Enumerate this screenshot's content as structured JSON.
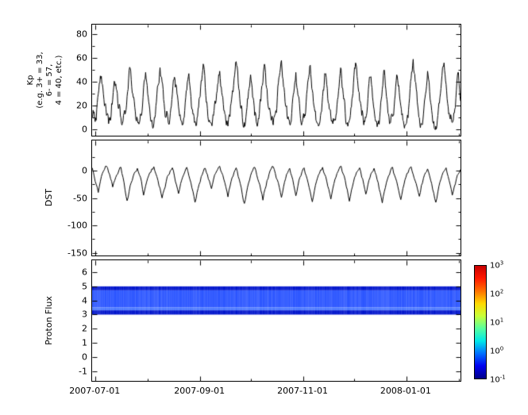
{
  "figure": {
    "background": "#ffffff",
    "axis_color": "#000000"
  },
  "x_axis": {
    "domain_days": 218,
    "major_days": [
      2,
      64,
      125,
      186
    ],
    "minor_days": [
      33,
      94,
      155,
      217
    ],
    "labels": [
      "2007-07-01",
      "2007-09-01",
      "2007-11-01",
      "2008-01-01"
    ]
  },
  "chart_data": [
    {
      "type": "line",
      "title": "",
      "xlabel": "",
      "ylabel": "Kp\n(e.g. 3+ = 33,\n6- = 57,\n4 = 40, etc.)",
      "ylim": [
        -5,
        88
      ],
      "yticks": [
        0,
        20,
        40,
        60,
        80
      ],
      "yticks_minor": [
        10,
        30,
        50,
        70
      ],
      "line_color": "#000000",
      "jitter_levels": 2,
      "jitter_amplitude": 6,
      "clamp": [
        0,
        85
      ],
      "values": [
        10,
        15,
        8,
        30,
        45,
        38,
        20,
        12,
        5,
        8,
        25,
        40,
        33,
        18,
        10,
        7,
        13,
        28,
        50,
        42,
        27,
        15,
        9,
        6,
        12,
        35,
        48,
        30,
        17,
        8,
        5,
        20,
        37,
        52,
        40,
        22,
        11,
        6,
        14,
        30,
        44,
        36,
        19,
        9,
        4,
        16,
        33,
        47,
        28,
        13,
        7,
        10,
        26,
        41,
        55,
        35,
        18,
        8,
        5,
        12,
        22,
        38,
        49,
        31,
        16,
        7,
        3,
        11,
        29,
        43,
        57,
        39,
        21,
        10,
        6,
        15,
        32,
        46,
        27,
        12,
        5,
        9,
        24,
        40,
        53,
        34,
        17,
        8,
        4,
        13,
        27,
        45,
        58,
        36,
        20,
        9,
        5,
        14,
        31,
        48,
        29,
        15,
        6,
        10,
        23,
        42,
        54,
        33,
        18,
        7,
        3,
        12,
        28,
        47,
        38,
        22,
        11,
        5,
        9,
        21,
        36,
        51,
        30,
        14,
        6,
        8,
        19,
        39,
        56,
        41,
        24,
        12,
        4,
        10,
        26,
        44,
        35,
        17,
        7,
        5,
        16,
        34,
        50,
        28,
        13,
        6,
        11,
        25,
        46,
        37,
        20,
        8,
        4,
        9,
        22,
        43,
        59,
        40,
        23,
        10,
        5,
        13,
        30,
        49,
        32,
        16,
        7,
        3,
        12,
        27,
        45,
        56,
        38,
        19,
        9,
        6,
        14,
        33,
        48,
        24
      ]
    },
    {
      "type": "line",
      "title": "",
      "xlabel": "",
      "ylabel": "DST",
      "ylim": [
        -155,
        55
      ],
      "yticks": [
        0,
        -50,
        -100,
        -150
      ],
      "yticks_minor": [
        25,
        -25,
        -75,
        -125
      ],
      "line_color": "#000000",
      "jitter_levels": 1,
      "jitter_amplitude": 3,
      "clamp": [
        -70,
        25
      ],
      "values": [
        5,
        -10,
        -25,
        -40,
        -20,
        -5,
        2,
        8,
        -3,
        -15,
        -30,
        -18,
        -8,
        0,
        6,
        -12,
        -35,
        -55,
        -38,
        -22,
        -10,
        -2,
        4,
        -8,
        -20,
        -45,
        -28,
        -14,
        -4,
        3,
        7,
        -6,
        -18,
        -32,
        -50,
        -35,
        -20,
        -8,
        0,
        5,
        -10,
        -26,
        -42,
        -24,
        -12,
        -3,
        6,
        -9,
        -22,
        -38,
        -58,
        -40,
        -25,
        -11,
        -2,
        4,
        -7,
        -19,
        -33,
        -16,
        -5,
        2,
        8,
        -4,
        -16,
        -30,
        -48,
        -29,
        -13,
        -3,
        5,
        -11,
        -24,
        -44,
        -60,
        -41,
        -23,
        -9,
        0,
        6,
        -8,
        -21,
        -36,
        -54,
        -34,
        -18,
        -6,
        3,
        7,
        -5,
        -17,
        -31,
        -49,
        -30,
        -15,
        -4,
        4,
        -10,
        -27,
        -46,
        -28,
        -12,
        -2,
        5,
        -9,
        -23,
        -39,
        -57,
        -37,
        -20,
        -8,
        1,
        6,
        -7,
        -19,
        -34,
        -52,
        -32,
        -16,
        -5,
        3,
        8,
        -6,
        -18,
        -35,
        -56,
        -36,
        -21,
        -9,
        -1,
        5,
        -12,
        -25,
        -43,
        -26,
        -13,
        -3,
        4,
        -8,
        -22,
        -40,
        -59,
        -38,
        -22,
        -10,
        0,
        6,
        -9,
        -20,
        -37,
        -53,
        -33,
        -17,
        -5,
        2,
        7,
        -7,
        -19,
        -32,
        -47,
        -27,
        -14,
        -4,
        3,
        -10,
        -24,
        -41,
        -58,
        -39,
        -21,
        -9,
        -1,
        5,
        -11,
        -26,
        -45,
        -29,
        -15,
        -6,
        2
      ]
    },
    {
      "type": "heatmap",
      "title": "",
      "xlabel": "",
      "ylabel": "Proton Flux",
      "ylim": [
        -1.7,
        6.85
      ],
      "yticks": [
        -1,
        0,
        1,
        2,
        3,
        4,
        5,
        6
      ],
      "band": {
        "y_min": 3.0,
        "y_max": 5.0,
        "rows": [
          {
            "y0": 4.72,
            "y1": 5.0,
            "color": "#0014cc"
          },
          {
            "y0": 3.5,
            "y1": 4.72,
            "color": "#2b55ff"
          },
          {
            "y0": 3.3,
            "y1": 3.5,
            "color": "#4b79ff"
          },
          {
            "y0": 3.0,
            "y1": 3.3,
            "color": "#0014cc"
          }
        ]
      },
      "colorbar": {
        "scale": "log",
        "base": "10",
        "tick_exponents": [
          3,
          2,
          1,
          0,
          -1
        ],
        "tick_labels_text": [
          "10^3",
          "10^2",
          "10^1",
          "10^0",
          "10^-1"
        ],
        "gradient_stops": [
          "#000088",
          "#0000f0",
          "#0070ff",
          "#00e8e8",
          "#58ff9e",
          "#c8ff38",
          "#ffd800",
          "#ff7000",
          "#ff1800",
          "#c80000"
        ]
      }
    }
  ]
}
